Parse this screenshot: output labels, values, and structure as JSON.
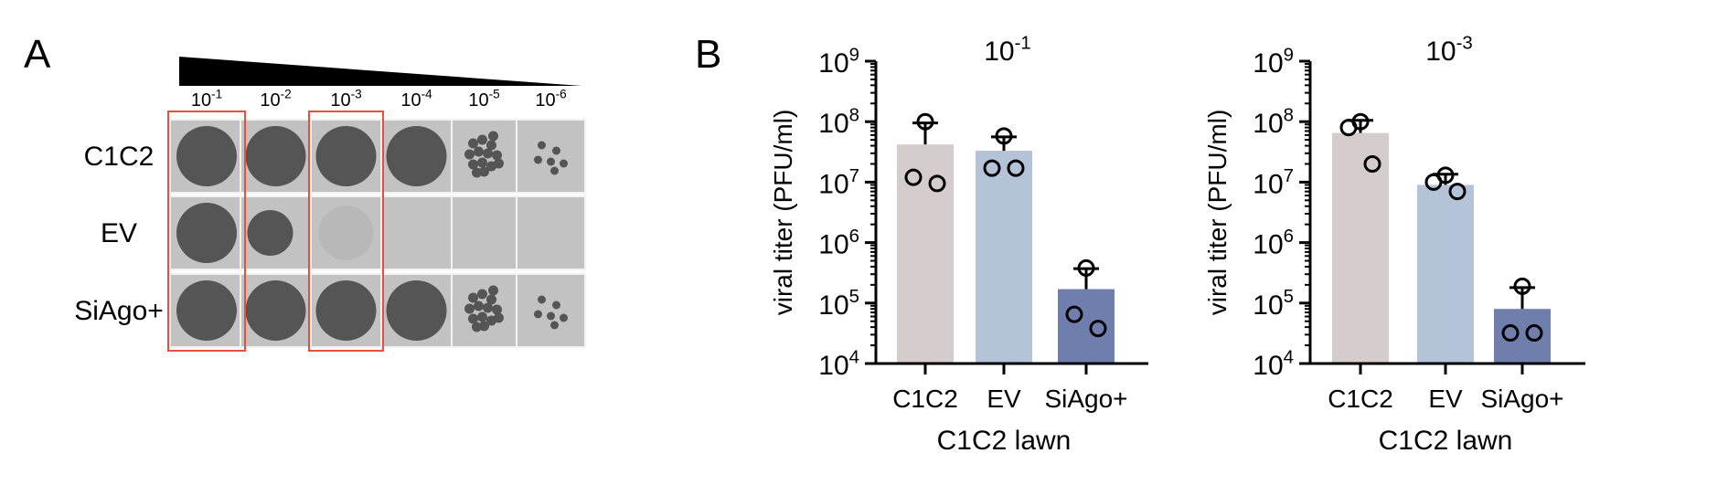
{
  "panel_a": {
    "label": "A",
    "dilutions": [
      {
        "base": "10",
        "exp": "-1"
      },
      {
        "base": "10",
        "exp": "-2"
      },
      {
        "base": "10",
        "exp": "-3"
      },
      {
        "base": "10",
        "exp": "-4"
      },
      {
        "base": "10",
        "exp": "-5"
      },
      {
        "base": "10",
        "exp": "-6"
      }
    ],
    "rows": [
      {
        "label": "C1C2",
        "plaques": [
          "lysis",
          "lysis",
          "lysis",
          "lysis",
          "plaques-many",
          "plaques-few"
        ]
      },
      {
        "label": "EV",
        "plaques": [
          "lysis",
          "lysis-small",
          "faint",
          "none",
          "none",
          "none"
        ]
      },
      {
        "label": "SiAgo+",
        "plaques": [
          "lysis",
          "lysis",
          "lysis",
          "lysis",
          "plaques-many",
          "plaques-few"
        ]
      }
    ],
    "highlighted_columns": [
      0,
      2
    ],
    "colors": {
      "plate_bg": "#c2c2c2",
      "spot": "#555555",
      "highlight": "#e8503a"
    }
  },
  "panel_b": {
    "label": "B"
  },
  "chart_data": [
    {
      "type": "bar",
      "title": {
        "base": "10",
        "exp": "-1"
      },
      "ylabel": "viral titer (PFU/ml)",
      "xlabel": "C1C2 lawn",
      "y_scale": "log",
      "ylim": [
        10000,
        1000000000
      ],
      "y_ticks": [
        {
          "base": "10",
          "exp": "4"
        },
        {
          "base": "10",
          "exp": "5"
        },
        {
          "base": "10",
          "exp": "6"
        },
        {
          "base": "10",
          "exp": "7"
        },
        {
          "base": "10",
          "exp": "8"
        },
        {
          "base": "10",
          "exp": "9"
        }
      ],
      "categories": [
        "C1C2",
        "EV",
        "SiAgo+"
      ],
      "values": [
        42000000,
        33000000,
        170000
      ],
      "error_upper": [
        95000000,
        56000000,
        370000
      ],
      "points": [
        [
          100000000,
          12000000,
          9500000
        ],
        [
          58000000,
          17000000,
          17000000
        ],
        [
          380000,
          65000,
          38000
        ]
      ],
      "colors": [
        "#d5cdcc",
        "#b5c3d9",
        "#707ead"
      ]
    },
    {
      "type": "bar",
      "title": {
        "base": "10",
        "exp": "-3"
      },
      "ylabel": "viral titer (PFU/ml)",
      "xlabel": "C1C2 lawn",
      "y_scale": "log",
      "ylim": [
        10000,
        1000000000
      ],
      "y_ticks": [
        {
          "base": "10",
          "exp": "4"
        },
        {
          "base": "10",
          "exp": "5"
        },
        {
          "base": "10",
          "exp": "6"
        },
        {
          "base": "10",
          "exp": "7"
        },
        {
          "base": "10",
          "exp": "8"
        },
        {
          "base": "10",
          "exp": "9"
        }
      ],
      "categories": [
        "C1C2",
        "EV",
        "SiAgo+"
      ],
      "values": [
        65000000,
        9000000,
        80000
      ],
      "error_upper": [
        105000000,
        13500000,
        180000
      ],
      "points": [
        [
          100000000,
          80000000,
          20000000
        ],
        [
          13000000,
          10000000,
          7000000
        ],
        [
          190000,
          32000,
          32000
        ]
      ],
      "colors": [
        "#d5cdcc",
        "#b5c3d9",
        "#707ead"
      ]
    }
  ]
}
